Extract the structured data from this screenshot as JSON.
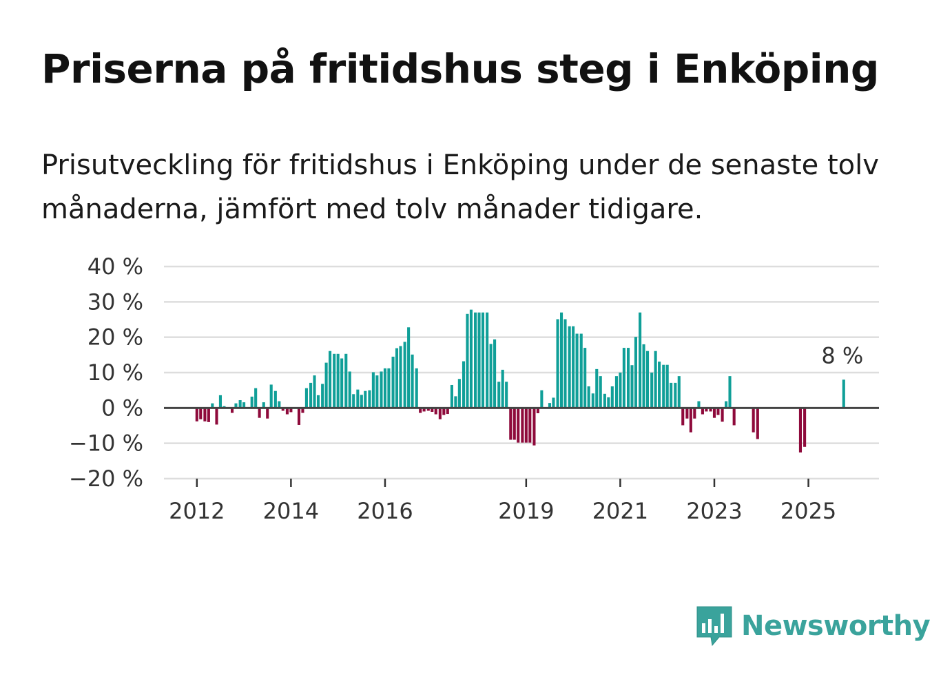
{
  "title": "Priserna på fritidshus steg i Enköping",
  "subtitle": "Prisutveckling för fritidshus i Enköping under de senaste tolv månaderna, jämfört med tolv månader tidigare.",
  "brand": {
    "name": "Newsworthy",
    "color": "#3aa39c",
    "icon": "newsworthy-logo-icon"
  },
  "colors": {
    "positive": "#109f98",
    "negative": "#8e0a3b",
    "grid": "#dddddd",
    "zero": "#444444"
  },
  "chart_data": {
    "type": "bar",
    "title": "Priserna på fritidshus steg i Enköping",
    "xlabel": "",
    "ylabel": "",
    "ylim": [
      -20,
      40
    ],
    "y_ticks": [
      40,
      30,
      20,
      10,
      0,
      -10,
      -20
    ],
    "y_tick_labels": [
      "40 %",
      "30 %",
      "20 %",
      "10 %",
      "0 %",
      "−10 %",
      "−20 %"
    ],
    "x_range": [
      2011.3,
      2026.5
    ],
    "x_ticks": [
      2012,
      2014,
      2016,
      2019,
      2021,
      2023,
      2025
    ],
    "x_tick_labels": [
      "2012",
      "2014",
      "2016",
      "2019",
      "2021",
      "2023",
      "2025"
    ],
    "grid": true,
    "annotation": {
      "x": 2025.75,
      "value": 8,
      "label": "8 %"
    },
    "series": [
      {
        "name": "Prisutveckling",
        "points": [
          [
            2012.0,
            -3.8
          ],
          [
            2012.08,
            -3.2
          ],
          [
            2012.17,
            -3.8
          ],
          [
            2012.25,
            -4.0
          ],
          [
            2012.33,
            1.3
          ],
          [
            2012.42,
            -4.7
          ],
          [
            2012.5,
            3.6
          ],
          [
            2012.58,
            0.5
          ],
          [
            2012.75,
            -1.4
          ],
          [
            2012.83,
            1.3
          ],
          [
            2012.92,
            2.2
          ],
          [
            2013.0,
            1.6
          ],
          [
            2013.17,
            3.2
          ],
          [
            2013.25,
            5.6
          ],
          [
            2013.33,
            -2.8
          ],
          [
            2013.42,
            1.6
          ],
          [
            2013.5,
            -3.0
          ],
          [
            2013.58,
            6.6
          ],
          [
            2013.67,
            4.8
          ],
          [
            2013.75,
            1.9
          ],
          [
            2013.83,
            -0.8
          ],
          [
            2013.92,
            -1.8
          ],
          [
            2014.0,
            -1.2
          ],
          [
            2014.17,
            -4.8
          ],
          [
            2014.25,
            -1.4
          ],
          [
            2014.33,
            5.6
          ],
          [
            2014.42,
            7.1
          ],
          [
            2014.5,
            9.2
          ],
          [
            2014.58,
            3.6
          ],
          [
            2014.67,
            6.8
          ],
          [
            2014.75,
            12.8
          ],
          [
            2014.83,
            16.1
          ],
          [
            2014.92,
            15.3
          ],
          [
            2015.0,
            15.3
          ],
          [
            2015.08,
            14.0
          ],
          [
            2015.17,
            15.3
          ],
          [
            2015.25,
            10.3
          ],
          [
            2015.33,
            3.9
          ],
          [
            2015.42,
            5.2
          ],
          [
            2015.5,
            3.7
          ],
          [
            2015.58,
            4.8
          ],
          [
            2015.67,
            5.0
          ],
          [
            2015.75,
            10.1
          ],
          [
            2015.83,
            9.2
          ],
          [
            2015.92,
            10.3
          ],
          [
            2016.0,
            11.2
          ],
          [
            2016.08,
            11.2
          ],
          [
            2016.17,
            14.5
          ],
          [
            2016.25,
            16.9
          ],
          [
            2016.33,
            17.5
          ],
          [
            2016.42,
            18.7
          ],
          [
            2016.5,
            22.8
          ],
          [
            2016.58,
            15.1
          ],
          [
            2016.67,
            11.2
          ],
          [
            2016.75,
            -1.4
          ],
          [
            2016.83,
            -1.0
          ],
          [
            2016.92,
            -0.8
          ],
          [
            2017.0,
            -1.1
          ],
          [
            2017.08,
            -1.8
          ],
          [
            2017.17,
            -3.2
          ],
          [
            2017.25,
            -2.0
          ],
          [
            2017.33,
            -1.7
          ],
          [
            2017.42,
            6.5
          ],
          [
            2017.5,
            3.3
          ],
          [
            2017.58,
            8.2
          ],
          [
            2017.67,
            13.2
          ],
          [
            2017.75,
            26.6
          ],
          [
            2017.83,
            27.8
          ],
          [
            2017.92,
            27.0
          ],
          [
            2018.0,
            27.0
          ],
          [
            2018.08,
            27.0
          ],
          [
            2018.17,
            27.0
          ],
          [
            2018.25,
            18.1
          ],
          [
            2018.33,
            19.4
          ],
          [
            2018.42,
            7.4
          ],
          [
            2018.5,
            10.8
          ],
          [
            2018.58,
            7.4
          ],
          [
            2018.67,
            -9.0
          ],
          [
            2018.75,
            -9.0
          ],
          [
            2018.83,
            -9.8
          ],
          [
            2018.92,
            -9.8
          ],
          [
            2019.0,
            -9.8
          ],
          [
            2019.08,
            -9.8
          ],
          [
            2019.17,
            -10.6
          ],
          [
            2019.25,
            -1.5
          ],
          [
            2019.33,
            5.0
          ],
          [
            2019.5,
            1.4
          ],
          [
            2019.58,
            2.9
          ],
          [
            2019.67,
            25.1
          ],
          [
            2019.75,
            27.0
          ],
          [
            2019.83,
            25.1
          ],
          [
            2019.92,
            23.1
          ],
          [
            2020.0,
            23.1
          ],
          [
            2020.08,
            21.0
          ],
          [
            2020.17,
            21.0
          ],
          [
            2020.25,
            17.0
          ],
          [
            2020.33,
            6.1
          ],
          [
            2020.42,
            4.1
          ],
          [
            2020.5,
            11.0
          ],
          [
            2020.58,
            9.0
          ],
          [
            2020.67,
            4.0
          ],
          [
            2020.75,
            3.0
          ],
          [
            2020.83,
            6.1
          ],
          [
            2020.92,
            9.0
          ],
          [
            2021.0,
            10.0
          ],
          [
            2021.08,
            17.0
          ],
          [
            2021.17,
            17.0
          ],
          [
            2021.25,
            12.1
          ],
          [
            2021.33,
            20.1
          ],
          [
            2021.42,
            27.0
          ],
          [
            2021.5,
            18.0
          ],
          [
            2021.58,
            16.1
          ],
          [
            2021.67,
            10.0
          ],
          [
            2021.75,
            16.1
          ],
          [
            2021.83,
            13.1
          ],
          [
            2021.92,
            12.2
          ],
          [
            2022.0,
            12.2
          ],
          [
            2022.08,
            7.1
          ],
          [
            2022.17,
            7.1
          ],
          [
            2022.25,
            9.0
          ],
          [
            2022.33,
            -4.9
          ],
          [
            2022.42,
            -3.0
          ],
          [
            2022.5,
            -6.9
          ],
          [
            2022.58,
            -3.0
          ],
          [
            2022.67,
            1.9
          ],
          [
            2022.75,
            -1.8
          ],
          [
            2022.83,
            -1.0
          ],
          [
            2022.92,
            -1.0
          ],
          [
            2023.0,
            -2.8
          ],
          [
            2023.08,
            -2.0
          ],
          [
            2023.17,
            -3.9
          ],
          [
            2023.25,
            1.9
          ],
          [
            2023.33,
            9.0
          ],
          [
            2023.42,
            -4.9
          ],
          [
            2023.83,
            -6.9
          ],
          [
            2023.92,
            -8.8
          ],
          [
            2024.83,
            -12.6
          ],
          [
            2024.92,
            -11.0
          ],
          [
            2025.75,
            8.0
          ]
        ]
      }
    ]
  }
}
